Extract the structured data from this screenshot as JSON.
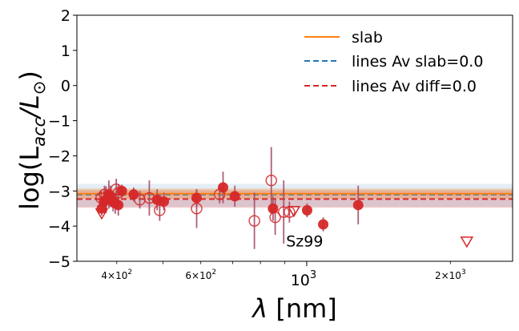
{
  "chart_data": {
    "type": "scatter",
    "x_scale": "log",
    "xlim": [
      330,
      2700
    ],
    "ylim": [
      -5,
      2
    ],
    "xlabel_main": "λ",
    "xlabel_unit": " [nm]",
    "ylabel_pre": "log(L",
    "ylabel_sub": "acc",
    "ylabel_post": "/L",
    "ylabel_sun": "⊙",
    "ylabel_close": ")",
    "y_ticks": [
      2,
      1,
      0,
      -1,
      -2,
      -3,
      -4,
      -5
    ],
    "y_tick_labels": [
      "2",
      "1",
      "0",
      "−1",
      "−2",
      "−3",
      "−4",
      "−5"
    ],
    "x_major_ticks": [
      {
        "value": 1000,
        "base": "10",
        "exp": "3"
      }
    ],
    "x_minor_ticks": [
      {
        "value": 400,
        "mant": "4",
        "base": "10",
        "exp": "2"
      },
      {
        "value": 600,
        "mant": "6",
        "base": "10",
        "exp": "2"
      },
      {
        "value": 2000,
        "mant": "2",
        "base": "10",
        "exp": "3"
      }
    ],
    "x_minor_unlabeled": [
      500,
      700,
      800,
      900
    ],
    "annotation": "Sz99",
    "annotation_pos": {
      "x": 990,
      "y": -4.42
    },
    "slab": {
      "name": "slab",
      "value": -3.08,
      "band": [
        -3.22,
        -2.93
      ],
      "color": "#ff7f0e"
    },
    "lines_av_slab": {
      "name": "lines Av slab=0.0",
      "value": -3.1,
      "band": [
        -3.45,
        -2.8
      ],
      "color": "#1f77b4"
    },
    "lines_av_diff": {
      "name": "lines Av diff=0.0",
      "value": -3.23,
      "band": [
        -3.48,
        -2.98
      ],
      "color": "#d62728"
    },
    "filled_points": [
      {
        "x": 372,
        "y": -3.5,
        "err": 0.2
      },
      {
        "x": 376,
        "y": -3.3,
        "err": 0.3
      },
      {
        "x": 380,
        "y": -3.25,
        "err": 0.38
      },
      {
        "x": 385,
        "y": -3.1,
        "err": 0.4
      },
      {
        "x": 388,
        "y": -3.15,
        "err": 0.3
      },
      {
        "x": 393,
        "y": -3.3,
        "err": 0.28
      },
      {
        "x": 397,
        "y": -3.35,
        "err": 0.3
      },
      {
        "x": 403,
        "y": -3.4,
        "err": 0.3
      },
      {
        "x": 410,
        "y": -3.0,
        "err": 0.18
      },
      {
        "x": 434,
        "y": -3.1,
        "err": 0.2
      },
      {
        "x": 486,
        "y": -3.25,
        "err": 0.3
      },
      {
        "x": 502,
        "y": -3.3,
        "err": 0.25
      },
      {
        "x": 588,
        "y": -3.2,
        "err": 0.25
      },
      {
        "x": 668,
        "y": -2.9,
        "err": 0.45
      },
      {
        "x": 707,
        "y": -3.15,
        "err": 0.3
      },
      {
        "x": 850,
        "y": -3.5,
        "err": 0.35
      },
      {
        "x": 1002,
        "y": -3.55,
        "err": 0.2
      },
      {
        "x": 1083,
        "y": -3.95,
        "err": 0.2
      },
      {
        "x": 1282,
        "y": -3.4,
        "err": 0.55
      }
    ],
    "open_points": [
      {
        "x": 371,
        "y": -3.2,
        "err": 0.2
      },
      {
        "x": 377,
        "y": -3.1,
        "err": 0.25
      },
      {
        "x": 399,
        "y": -2.95,
        "err": 0.3
      },
      {
        "x": 403,
        "y": -3.05,
        "err": 0.25
      },
      {
        "x": 447,
        "y": -3.25,
        "err": 0.25
      },
      {
        "x": 468,
        "y": -3.2,
        "err": 0.5
      },
      {
        "x": 492,
        "y": -3.55,
        "err": 0.3
      },
      {
        "x": 588,
        "y": -3.5,
        "err": 0.55
      },
      {
        "x": 657,
        "y": -3.1,
        "err": 0.25
      },
      {
        "x": 777,
        "y": -3.85,
        "err": 0.8
      },
      {
        "x": 843,
        "y": -2.7,
        "err": 0.95
      },
      {
        "x": 859,
        "y": -3.75,
        "err": 0.5
      },
      {
        "x": 895,
        "y": -3.6,
        "err": 0.9
      },
      {
        "x": 920,
        "y": -3.6,
        "err": 0.3
      }
    ],
    "upper_limits": [
      {
        "x": 372,
        "y": -3.65
      },
      {
        "x": 940,
        "y": -3.58
      },
      {
        "x": 2165,
        "y": -4.45
      }
    ],
    "point_color": "#d62728",
    "errbar_color": "#a64d66"
  }
}
